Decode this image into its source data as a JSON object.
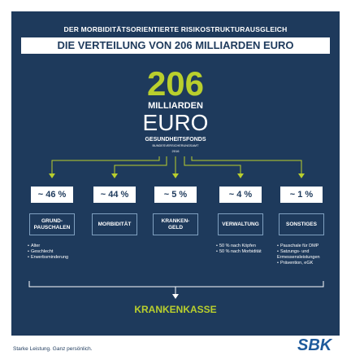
{
  "header": {
    "line1": "DER MORBIDITÄTSORIENTIERTE RISIKOSTRUKTURAUSGLEICH",
    "line2": "DIE VERTEILUNG VON 206 MILLIARDEN EURO"
  },
  "center": {
    "number": "206",
    "unit1": "MILLIARDEN",
    "unit2": "EURO",
    "fund": "GESUNDHEITSFONDS",
    "agency": "BUNDESVERSICHERUNGSAMT",
    "year": "2016"
  },
  "shares": [
    {
      "value": "~ 46 %",
      "label": [
        "GRUND-",
        "PAUSCHALEN"
      ],
      "notes": [
        "Alter",
        "Geschlecht",
        "Erwerbsminderung"
      ]
    },
    {
      "value": "~ 44 %",
      "label": [
        "MORBIDITÄT"
      ],
      "notes": []
    },
    {
      "value": "~ 5 %",
      "label": [
        "KRANKEN-",
        "GELD"
      ],
      "notes": []
    },
    {
      "value": "~ 4 %",
      "label": [
        "VERWALTUNG"
      ],
      "notes": [
        "50 % nach Köpfen",
        "50 % nach Morbidität"
      ]
    },
    {
      "value": "~ 1 %",
      "label": [
        "SONSTIGES"
      ],
      "notes": [
        "Pauschale für DMP",
        "Satzungs- und Ermessensleistungen",
        "Prävention, eGK"
      ]
    }
  ],
  "target": "KRANKENKASSE",
  "footer": {
    "slogan": "Starke Leistung. Ganz persönlich.",
    "logo": "SBK"
  }
}
